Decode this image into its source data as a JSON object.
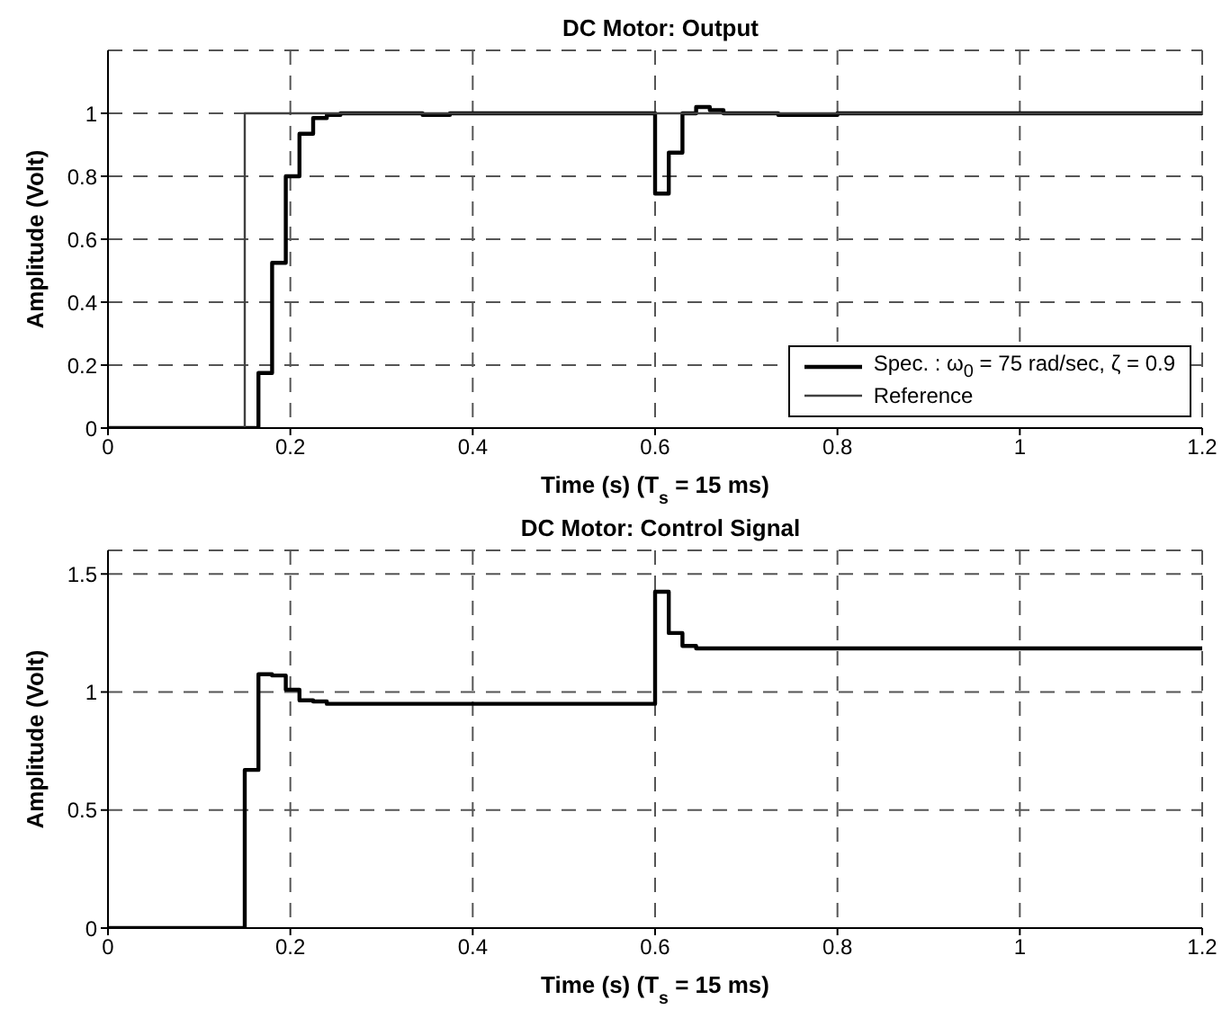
{
  "chart_data": [
    {
      "type": "step",
      "title": "DC Motor: Output",
      "xlabel": "Time (s) (T$_{s}$ = 15 ms)",
      "ylabel": "Amplitude (Volt)",
      "xlim": [
        0,
        1.2
      ],
      "xticks": [
        0,
        0.2,
        0.4,
        0.6,
        0.8,
        1,
        1.2
      ],
      "ylim": [
        0,
        1.2
      ],
      "yticks": [
        0,
        0.2,
        0.4,
        0.6,
        0.8,
        1
      ],
      "grid": true,
      "legend": "bottom right",
      "marker": "none",
      "line_style": "solid",
      "series": [
        {
          "name": "Spec. : ω$_{0}$ = 75 rad/sec, ζ = 0.9",
          "color": "#000000",
          "x": [
            0,
            0.165,
            0.18,
            0.195,
            0.21,
            0.225,
            0.24,
            0.255,
            0.345,
            0.375,
            0.6,
            0.615,
            0.63,
            0.645,
            0.66,
            0.675,
            0.735,
            0.8,
            1.2
          ],
          "values": [
            0,
            0.175,
            0.525,
            0.8,
            0.935,
            0.985,
            0.995,
            1,
            0.995,
            1,
            0.745,
            0.875,
            1,
            1.02,
            1.01,
            1,
            0.995,
            1,
            1
          ]
        },
        {
          "name": "Reference",
          "color": "#404040",
          "x": [
            0,
            0.15,
            1.2
          ],
          "values": [
            0,
            1,
            1
          ]
        }
      ]
    },
    {
      "type": "step",
      "title": "DC Motor: Control Signal",
      "xlabel": "Time (s) (T$_{s}$ = 15 ms)",
      "ylabel": "Amplitude (Volt)",
      "xlim": [
        0,
        1.2
      ],
      "xticks": [
        0,
        0.2,
        0.4,
        0.6,
        0.8,
        1,
        1.2
      ],
      "ylim": [
        0,
        1.6
      ],
      "yticks": [
        0,
        0.5,
        1,
        1.5
      ],
      "grid": true,
      "marker": "none",
      "line_style": "solid",
      "series": [
        {
          "color": "#000000",
          "x": [
            0,
            0.15,
            0.165,
            0.18,
            0.195,
            0.21,
            0.225,
            0.24,
            0.6,
            0.615,
            0.63,
            0.645,
            1.2
          ],
          "values": [
            0,
            0.67,
            1.075,
            1.07,
            1.01,
            0.965,
            0.96,
            0.95,
            1.425,
            1.25,
            1.195,
            1.185,
            1.185
          ]
        }
      ]
    }
  ]
}
